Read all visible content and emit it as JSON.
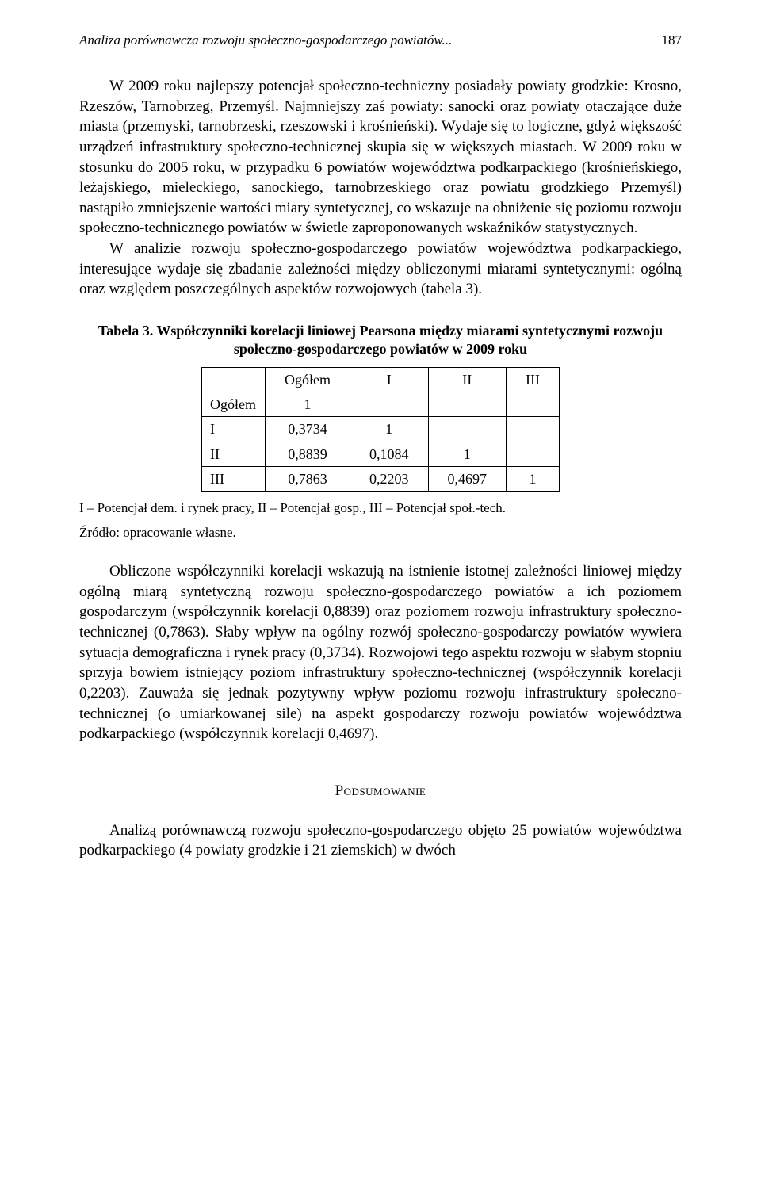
{
  "running_head": {
    "title": "Analiza porównawcza rozwoju społeczno-gospodarczego powiatów...",
    "page": "187"
  },
  "para1": "W 2009 roku najlepszy potencjał społeczno-techniczny posiadały powiaty grodzkie: Krosno, Rzeszów, Tarnobrzeg, Przemyśl. Najmniejszy zaś powiaty: sanocki oraz powiaty otaczające duże miasta (przemyski, tarnobrzeski, rzeszowski i krośnieński). Wydaje się to logiczne, gdyż większość urządzeń infrastruktury społeczno-technicznej skupia się w większych miastach. W 2009 roku w stosunku do 2005 roku, w przypadku 6 powiatów województwa podkarpackiego (krośnieńskiego, leżajskiego, mieleckiego, sanockiego, tarnobrzeskiego oraz powiatu grodzkiego Przemyśl) nastąpiło zmniejszenie wartości miary syntetycznej, co wskazuje na obniżenie się poziomu rozwoju społeczno-technicznego powiatów w świetle zaproponowanych wskaźników statystycznych.",
  "para2": "W analizie rozwoju społeczno-gospodarczego powiatów województwa podkarpackiego, interesujące wydaje się zbadanie zależności między obliczonymi miarami syntetycznymi: ogólną oraz względem poszczególnych aspektów rozwojowych (tabela 3).",
  "table": {
    "caption": "Tabela 3. Współczynniki korelacji liniowej Pearsona między miarami syntetycznymi rozwoju społeczno-gospodarczego powiatów w 2009 roku",
    "headers": [
      "",
      "Ogółem",
      "I",
      "II",
      "III"
    ],
    "rows": [
      [
        "Ogółem",
        "1",
        "",
        "",
        ""
      ],
      [
        "I",
        "0,3734",
        "1",
        "",
        ""
      ],
      [
        "II",
        "0,8839",
        "0,1084",
        "1",
        ""
      ],
      [
        "III",
        "0,7863",
        "0,2203",
        "0,4697",
        "1"
      ]
    ],
    "note": "I – Potencjał dem. i rynek pracy, II – Potencjał gosp., III – Potencjał społ.-tech.",
    "source": "Źródło: opracowanie własne."
  },
  "para3": "Obliczone współczynniki korelacji wskazują na istnienie istotnej zależności liniowej między ogólną miarą syntetyczną rozwoju społeczno-gospodarczego powiatów a ich poziomem gospodarczym (współczynnik korelacji 0,8839) oraz poziomem rozwoju infrastruktury społeczno-technicznej (0,7863). Słaby wpływ na ogólny rozwój społeczno-gospodarczy powiatów wywiera sytuacja demograficzna i rynek pracy (0,3734). Rozwojowi tego aspektu rozwoju w słabym stopniu sprzyja bowiem istniejący poziom infrastruktury społeczno-technicznej (współczynnik korelacji 0,2203). Zauważa się jednak pozytywny wpływ poziomu rozwoju infrastruktury społeczno-technicznej (o umiarkowanej sile) na aspekt gospodarczy rozwoju powiatów województwa podkarpackiego (współczynnik korelacji 0,4697).",
  "section_heading": "Podsumowanie",
  "para4": "Analizą porównawczą rozwoju społeczno-gospodarczego objęto 25 powiatów województwa podkarpackiego (4 powiaty grodzkie i 21 ziemskich) w dwóch"
}
